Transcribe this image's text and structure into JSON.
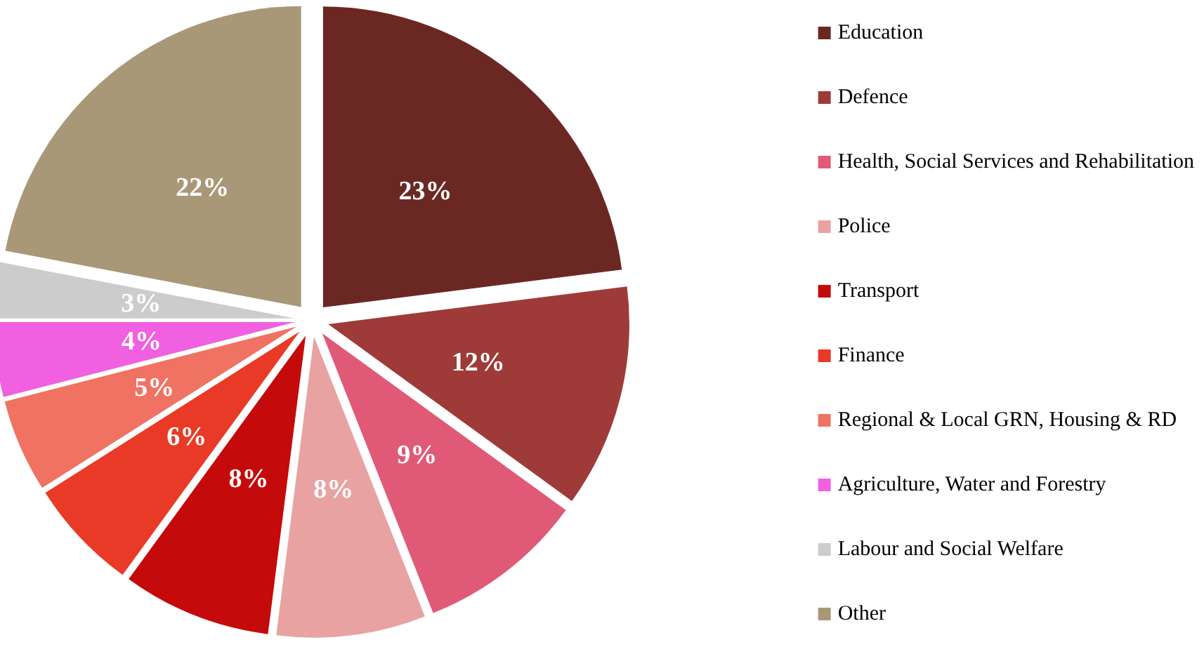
{
  "chart_data": {
    "type": "pie",
    "categories": [
      "Education",
      "Defence",
      "Health, Social Services and Rehabilitation",
      "Police",
      "Transport",
      "Finance",
      "Regional & Local GRN, Housing & RD",
      "Agriculture, Water and Forestry",
      "Labour and Social Welfare",
      "Other"
    ],
    "values": [
      23,
      12,
      9,
      8,
      8,
      6,
      5,
      4,
      3,
      22
    ],
    "colors": [
      "#6b2823",
      "#9e3b39",
      "#e05a78",
      "#e8a2a2",
      "#c40a0a",
      "#e83a26",
      "#f07262",
      "#f060e0",
      "#cccccc",
      "#a89878"
    ],
    "value_labels": [
      "23%",
      "12%",
      "9%",
      "8%",
      "8%",
      "6%",
      "5%",
      "4%",
      "3%",
      "22%"
    ],
    "legend": "right"
  }
}
